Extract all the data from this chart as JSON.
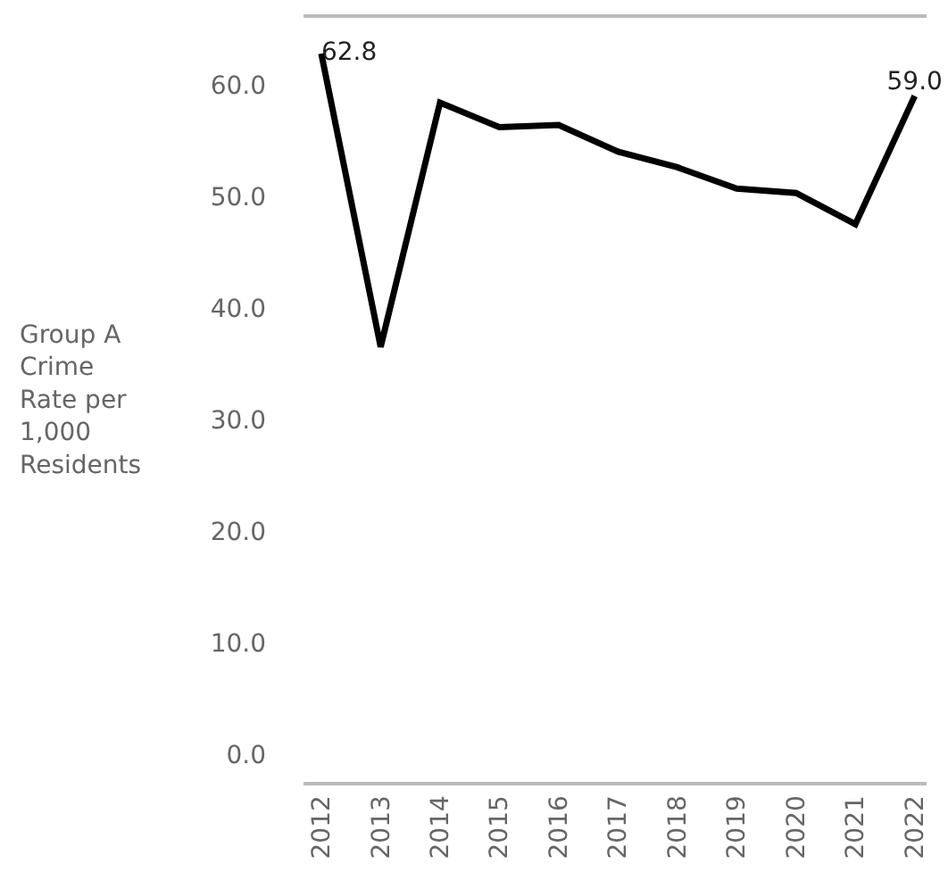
{
  "chart_data": {
    "type": "line",
    "ylabel": "Group A Crime Rate per 1,000 Residents",
    "categories": [
      "2012",
      "2013",
      "2014",
      "2015",
      "2016",
      "2017",
      "2018",
      "2019",
      "2020",
      "2021",
      "2022"
    ],
    "series": [
      {
        "color": "#000000",
        "values": [
          62.8,
          36.5,
          58.4,
          56.2,
          56.4,
          54.0,
          52.6,
          50.7,
          50.3,
          47.5,
          59.0
        ],
        "value_labels": [
          "62.8",
          null,
          null,
          null,
          null,
          null,
          null,
          null,
          null,
          null,
          "59.0"
        ]
      }
    ],
    "ylim": [
      -2.5,
      66
    ],
    "yticks": [
      {
        "value": 0,
        "label": "0.0"
      },
      {
        "value": 10,
        "label": "10.0"
      },
      {
        "value": 20,
        "label": "20.0"
      },
      {
        "value": 30,
        "label": "30.0"
      },
      {
        "value": 40,
        "label": "40.0"
      },
      {
        "value": 50,
        "label": "50.0"
      },
      {
        "value": 60,
        "label": "60.0"
      }
    ],
    "marker": "none",
    "line_style": "solid"
  }
}
